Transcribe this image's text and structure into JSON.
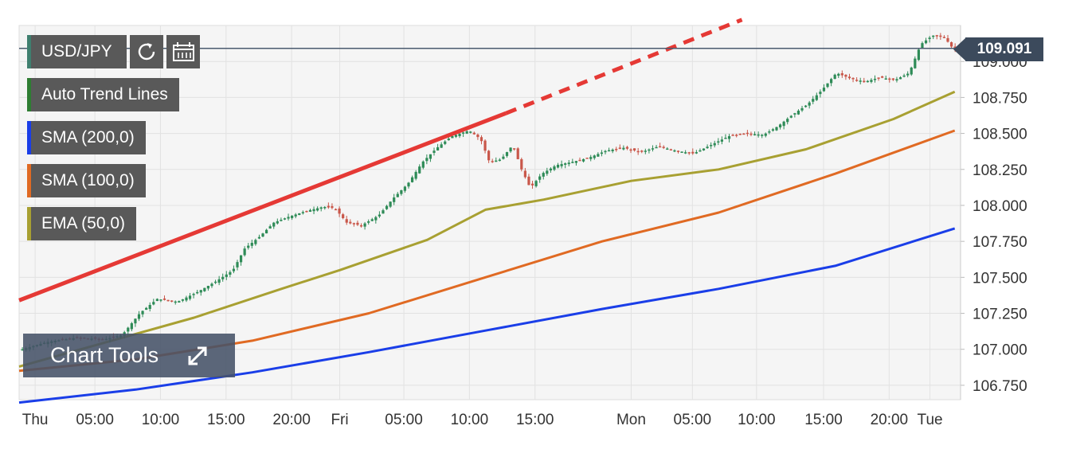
{
  "instrument": {
    "symbol": "USD/JPY",
    "current_price": "109.091",
    "refresh_icon": "refresh-icon",
    "calendar_icon": "calendar-icon"
  },
  "legend": [
    {
      "label": "Auto Trend Lines",
      "color": "#2e7d32"
    },
    {
      "label": "SMA (200,0)",
      "color": "#1a3ee8"
    },
    {
      "label": "SMA (100,0)",
      "color": "#e06a23"
    },
    {
      "label": "EMA (50,0)",
      "color": "#a8a032"
    }
  ],
  "chart_tools": {
    "label": "Chart Tools",
    "icon": "expand-icon"
  },
  "chart_data": {
    "type": "line",
    "title": "",
    "xlabel": "",
    "ylabel": "",
    "ylim": [
      106.65,
      109.25
    ],
    "x_ticks": [
      {
        "label": "Thu",
        "t": 0.55
      },
      {
        "label": "05:00",
        "t": 2.6
      },
      {
        "label": "10:00",
        "t": 4.85
      },
      {
        "label": "15:00",
        "t": 7.1
      },
      {
        "label": "20:00",
        "t": 9.35
      },
      {
        "label": "Fri",
        "t": 11.0
      },
      {
        "label": "05:00",
        "t": 13.2
      },
      {
        "label": "10:00",
        "t": 15.45
      },
      {
        "label": "15:00",
        "t": 17.7
      },
      {
        "label": "Mon",
        "t": 21.0
      },
      {
        "label": "05:00",
        "t": 23.1
      },
      {
        "label": "10:00",
        "t": 25.3
      },
      {
        "label": "15:00",
        "t": 27.6
      },
      {
        "label": "20:00",
        "t": 29.85
      },
      {
        "label": "Tue",
        "t": 31.25
      }
    ],
    "y_ticks": [
      106.75,
      107.0,
      107.25,
      107.5,
      107.75,
      108.0,
      108.25,
      108.5,
      108.75,
      109.0
    ],
    "y_tick_labels": [
      "106.750",
      "107.000",
      "107.250",
      "107.500",
      "107.750",
      "108.000",
      "108.250",
      "108.500",
      "108.750",
      "109.000"
    ],
    "current_price_level": 109.091,
    "colors": {
      "up": "#2e8b57",
      "down": "#c9574a",
      "trend": "#e53935",
      "sma200": "#1a3ee8",
      "sma100": "#e06a23",
      "ema50": "#a8a032"
    },
    "price_path": [
      [
        0.0,
        106.99
      ],
      [
        1.0,
        107.05
      ],
      [
        2.0,
        107.08
      ],
      [
        3.0,
        107.07
      ],
      [
        3.6,
        107.1
      ],
      [
        4.2,
        107.25
      ],
      [
        4.8,
        107.35
      ],
      [
        5.5,
        107.33
      ],
      [
        6.2,
        107.4
      ],
      [
        6.8,
        107.47
      ],
      [
        7.4,
        107.55
      ],
      [
        7.8,
        107.7
      ],
      [
        8.3,
        107.78
      ],
      [
        8.8,
        107.88
      ],
      [
        9.3,
        107.92
      ],
      [
        9.9,
        107.96
      ],
      [
        10.5,
        107.99
      ],
      [
        10.9,
        107.98
      ],
      [
        11.3,
        107.88
      ],
      [
        11.8,
        107.86
      ],
      [
        12.4,
        107.93
      ],
      [
        12.9,
        108.05
      ],
      [
        13.4,
        108.15
      ],
      [
        13.9,
        108.3
      ],
      [
        14.4,
        108.4
      ],
      [
        14.9,
        108.48
      ],
      [
        15.5,
        108.52
      ],
      [
        15.9,
        108.46
      ],
      [
        16.2,
        108.3
      ],
      [
        16.6,
        108.32
      ],
      [
        17.0,
        108.42
      ],
      [
        17.3,
        108.25
      ],
      [
        17.6,
        108.12
      ],
      [
        18.0,
        108.22
      ],
      [
        18.5,
        108.28
      ],
      [
        19.0,
        108.3
      ],
      [
        19.6,
        108.33
      ],
      [
        20.2,
        108.38
      ],
      [
        20.8,
        108.4
      ],
      [
        21.4,
        108.37
      ],
      [
        22.0,
        108.41
      ],
      [
        22.6,
        108.38
      ],
      [
        23.2,
        108.36
      ],
      [
        23.8,
        108.42
      ],
      [
        24.4,
        108.48
      ],
      [
        25.0,
        108.5
      ],
      [
        25.6,
        108.49
      ],
      [
        26.1,
        108.55
      ],
      [
        26.6,
        108.63
      ],
      [
        27.1,
        108.7
      ],
      [
        27.6,
        108.8
      ],
      [
        28.1,
        108.92
      ],
      [
        28.6,
        108.88
      ],
      [
        29.1,
        108.86
      ],
      [
        29.6,
        108.89
      ],
      [
        30.1,
        108.87
      ],
      [
        30.6,
        108.92
      ],
      [
        31.0,
        109.12
      ],
      [
        31.4,
        109.18
      ],
      [
        31.8,
        109.17
      ],
      [
        32.1,
        109.09
      ]
    ],
    "series": [
      {
        "name": "EMA (50,0)",
        "points": [
          [
            0.0,
            106.88
          ],
          [
            3.0,
            107.05
          ],
          [
            6.0,
            107.22
          ],
          [
            9.0,
            107.42
          ],
          [
            11.0,
            107.55
          ],
          [
            14.0,
            107.76
          ],
          [
            16.0,
            107.97
          ],
          [
            18.0,
            108.04
          ],
          [
            21.0,
            108.17
          ],
          [
            24.0,
            108.25
          ],
          [
            27.0,
            108.39
          ],
          [
            30.0,
            108.6
          ],
          [
            32.1,
            108.79
          ]
        ]
      },
      {
        "name": "SMA (100,0)",
        "points": [
          [
            0.0,
            106.85
          ],
          [
            4.0,
            106.93
          ],
          [
            8.0,
            107.06
          ],
          [
            12.0,
            107.25
          ],
          [
            16.0,
            107.5
          ],
          [
            20.0,
            107.75
          ],
          [
            24.0,
            107.95
          ],
          [
            28.0,
            108.22
          ],
          [
            32.1,
            108.52
          ]
        ]
      },
      {
        "name": "SMA (200,0)",
        "points": [
          [
            0.0,
            106.63
          ],
          [
            4.0,
            106.72
          ],
          [
            8.0,
            106.84
          ],
          [
            12.0,
            106.98
          ],
          [
            16.0,
            107.13
          ],
          [
            20.0,
            107.28
          ],
          [
            24.0,
            107.42
          ],
          [
            28.0,
            107.58
          ],
          [
            32.1,
            107.84
          ]
        ]
      }
    ],
    "trend_line": {
      "solid": [
        [
          0.0,
          107.34
        ],
        [
          16.7,
          108.64
        ]
      ],
      "dashed": [
        [
          16.7,
          108.64
        ],
        [
          24.8,
          109.29
        ]
      ]
    }
  }
}
